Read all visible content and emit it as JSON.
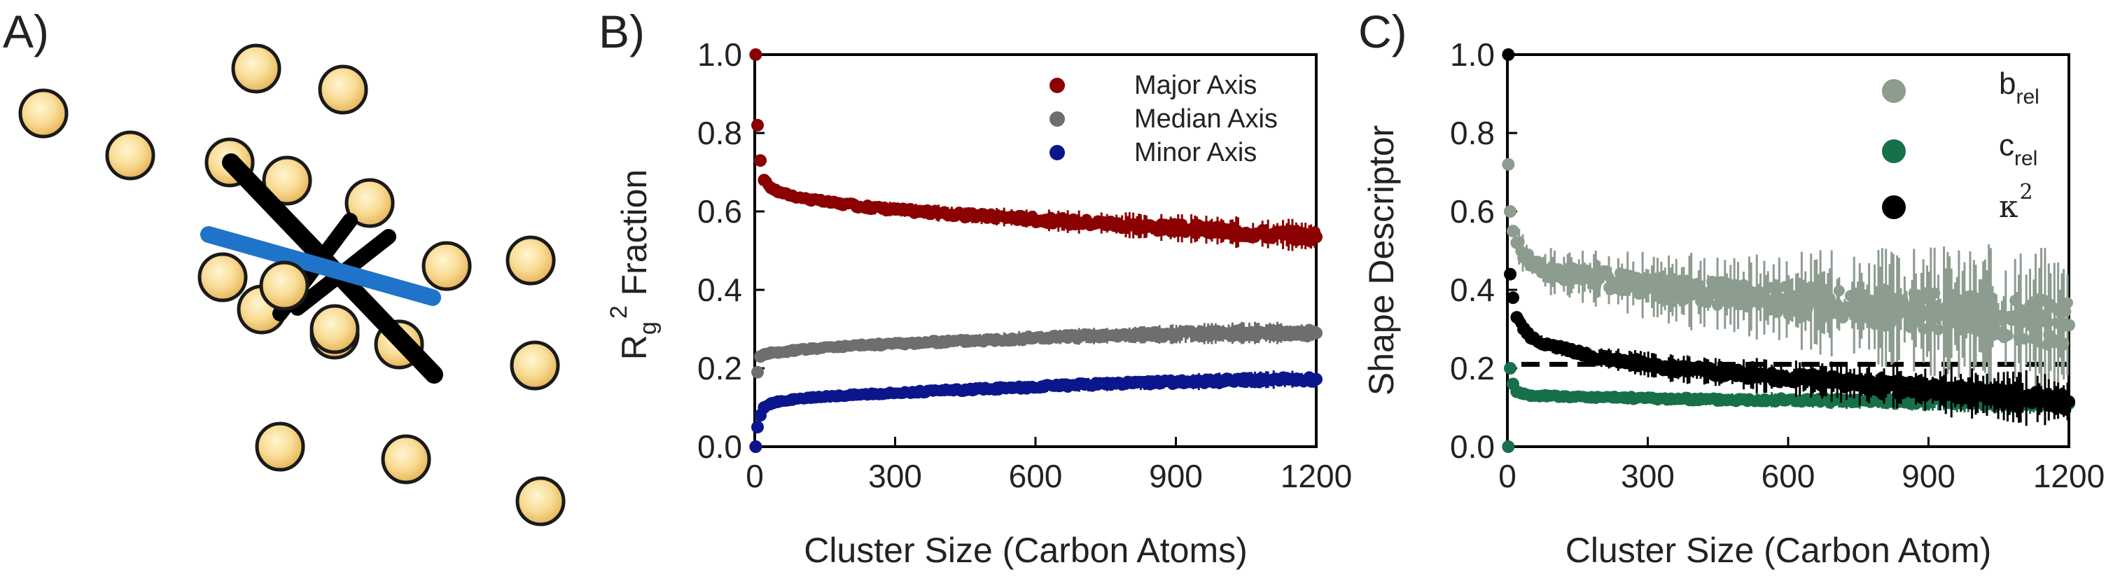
{
  "panels": {
    "a": "A)",
    "b": "B)",
    "c": "C)"
  },
  "chart_data": [
    {
      "id": "B",
      "type": "scatter",
      "xlabel": "Cluster Size (Carbon Atoms)",
      "ylabel_main": "R",
      "ylabel_sub": "g",
      "ylabel_sup": "2",
      "ylabel_rest": " Fraction",
      "xlim": [
        0,
        1200
      ],
      "ylim": [
        0,
        1.0
      ],
      "x_ticks": [
        "0",
        "300",
        "600",
        "900",
        "1200"
      ],
      "y_ticks": [
        "0.0",
        "0.2",
        "0.4",
        "0.6",
        "0.8",
        "1.0"
      ],
      "series": [
        {
          "name": "Major Axis",
          "color": "#8b0000",
          "x": [
            2,
            6,
            12,
            20,
            35,
            50,
            80,
            120,
            180,
            250,
            350,
            450,
            550,
            650,
            750,
            850,
            950,
            1050,
            1150,
            1200
          ],
          "values": [
            1.0,
            0.82,
            0.73,
            0.68,
            0.66,
            0.65,
            0.64,
            0.63,
            0.62,
            0.61,
            0.6,
            0.59,
            0.585,
            0.575,
            0.57,
            0.56,
            0.555,
            0.545,
            0.54,
            0.535
          ]
        },
        {
          "name": "Median Axis",
          "color": "#6e6e6e",
          "x": [
            2,
            6,
            12,
            20,
            35,
            50,
            80,
            120,
            180,
            250,
            350,
            450,
            550,
            650,
            750,
            850,
            950,
            1050,
            1150,
            1200
          ],
          "values": [
            0.0,
            0.19,
            0.23,
            0.235,
            0.24,
            0.24,
            0.245,
            0.25,
            0.255,
            0.26,
            0.265,
            0.27,
            0.275,
            0.28,
            0.283,
            0.286,
            0.288,
            0.29,
            0.29,
            0.29
          ]
        },
        {
          "name": "Minor Axis",
          "color": "#0c168c",
          "x": [
            2,
            6,
            12,
            20,
            35,
            50,
            80,
            120,
            180,
            250,
            350,
            450,
            550,
            650,
            750,
            850,
            950,
            1050,
            1150,
            1200
          ],
          "values": [
            0.0,
            0.05,
            0.08,
            0.1,
            0.11,
            0.115,
            0.12,
            0.125,
            0.13,
            0.135,
            0.14,
            0.145,
            0.15,
            0.155,
            0.16,
            0.163,
            0.166,
            0.17,
            0.172,
            0.172
          ]
        }
      ]
    },
    {
      "id": "C",
      "type": "scatter",
      "xlabel": "Cluster Size (Carbon Atom)",
      "ylabel": "Shape Descriptor",
      "xlim": [
        0,
        1200
      ],
      "ylim": [
        0,
        1.0
      ],
      "x_ticks": [
        "0",
        "300",
        "600",
        "900",
        "1200"
      ],
      "y_ticks": [
        "0.0",
        "0.2",
        "0.4",
        "0.6",
        "0.8",
        "1.0"
      ],
      "reference_line": {
        "y": 0.21,
        "style": "dashed"
      },
      "series": [
        {
          "name": "b",
          "sub": "rel",
          "color": "#8c9c8f",
          "x": [
            2,
            6,
            12,
            20,
            35,
            50,
            80,
            120,
            180,
            250,
            350,
            450,
            550,
            650,
            750,
            850,
            950,
            1050,
            1150,
            1200
          ],
          "values": [
            0.72,
            0.6,
            0.55,
            0.52,
            0.49,
            0.47,
            0.45,
            0.44,
            0.43,
            0.42,
            0.4,
            0.39,
            0.38,
            0.37,
            0.36,
            0.35,
            0.34,
            0.33,
            0.32,
            0.31
          ]
        },
        {
          "name": "c",
          "sub": "rel",
          "color": "#16704a",
          "x": [
            2,
            6,
            12,
            20,
            35,
            50,
            80,
            120,
            180,
            250,
            350,
            450,
            550,
            650,
            750,
            850,
            950,
            1050,
            1150,
            1200
          ],
          "values": [
            0.0,
            0.2,
            0.16,
            0.14,
            0.135,
            0.13,
            0.13,
            0.128,
            0.126,
            0.125,
            0.122,
            0.12,
            0.12,
            0.118,
            0.117,
            0.116,
            0.115,
            0.113,
            0.112,
            0.11
          ]
        },
        {
          "name": "κ",
          "sup": "2",
          "color": "#000000",
          "x": [
            2,
            6,
            12,
            20,
            35,
            50,
            80,
            120,
            180,
            250,
            350,
            450,
            550,
            650,
            750,
            850,
            950,
            1050,
            1150,
            1200
          ],
          "values": [
            1.0,
            0.44,
            0.38,
            0.33,
            0.3,
            0.28,
            0.26,
            0.25,
            0.23,
            0.22,
            0.2,
            0.19,
            0.18,
            0.17,
            0.16,
            0.15,
            0.14,
            0.13,
            0.12,
            0.115
          ]
        }
      ]
    }
  ]
}
